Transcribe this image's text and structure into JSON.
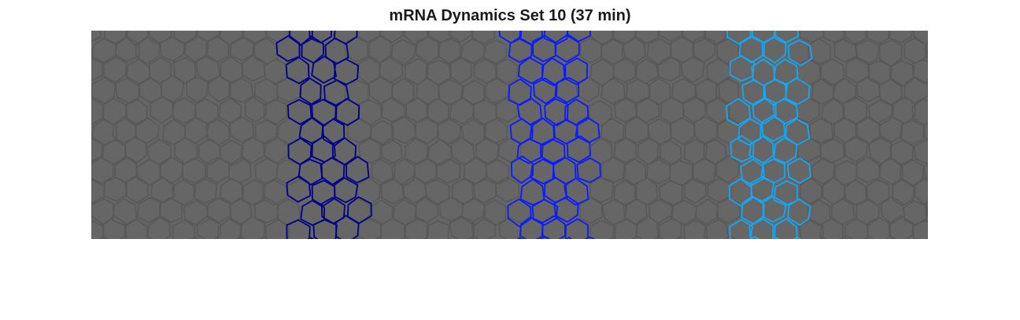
{
  "figure": {
    "title": "mRNA Dynamics Set 10 (37 min)"
  },
  "colors": {
    "background": "#666666",
    "cell_outline": "#595959",
    "stripe_1": "#00008b",
    "stripe_2": "#0a1cff",
    "stripe_3": "#12a8f5"
  },
  "stripes": [
    {
      "name": "stripe-1",
      "color": "#00008b"
    },
    {
      "name": "stripe-2",
      "color": "#0a1cff"
    },
    {
      "name": "stripe-3",
      "color": "#12a8f5"
    }
  ]
}
